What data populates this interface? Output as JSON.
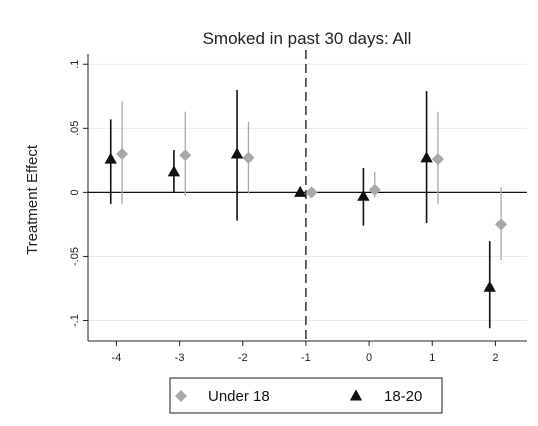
{
  "chart_data": {
    "type": "scatter",
    "title": "Smoked in past 30 days: All",
    "xlabel": "",
    "ylabel": "Treatment Effect",
    "x": [
      -4,
      -3,
      -2,
      -1,
      0,
      1,
      2
    ],
    "x_tick_labels": [
      "-4",
      "-3",
      "-2",
      "-1",
      "0",
      "1",
      "2"
    ],
    "y_ticks": [
      -0.1,
      -0.05,
      0,
      0.05,
      0.1
    ],
    "y_tick_labels": [
      "-.1",
      "-.05",
      "0",
      ".05",
      ".1"
    ],
    "xlim": [
      -4.45,
      2.5
    ],
    "ylim": [
      -0.116,
      0.108
    ],
    "grid": true,
    "reference_lines": {
      "y": 0,
      "x_dashed": -1
    },
    "legend": {
      "placement": "bottom"
    },
    "series": [
      {
        "name": "Under 18",
        "marker": "diamond",
        "color": "#a8a8a8",
        "values": [
          0.03,
          0.029,
          0.027,
          0.0,
          0.002,
          0.026,
          -0.025
        ],
        "ci_low": [
          -0.009,
          -0.003,
          -0.001,
          -0.001,
          -0.004,
          -0.009,
          -0.053
        ],
        "ci_high": [
          0.071,
          0.063,
          0.055,
          0.001,
          0.016,
          0.063,
          0.004
        ]
      },
      {
        "name": "18-20",
        "marker": "triangle",
        "color": "#111111",
        "values": [
          0.026,
          0.016,
          0.03,
          0.0,
          -0.003,
          0.027,
          -0.074
        ],
        "ci_low": [
          -0.009,
          0.0,
          -0.022,
          -0.001,
          -0.026,
          -0.024,
          -0.106
        ],
        "ci_high": [
          0.057,
          0.033,
          0.08,
          0.001,
          0.019,
          0.079,
          -0.038
        ]
      }
    ]
  }
}
